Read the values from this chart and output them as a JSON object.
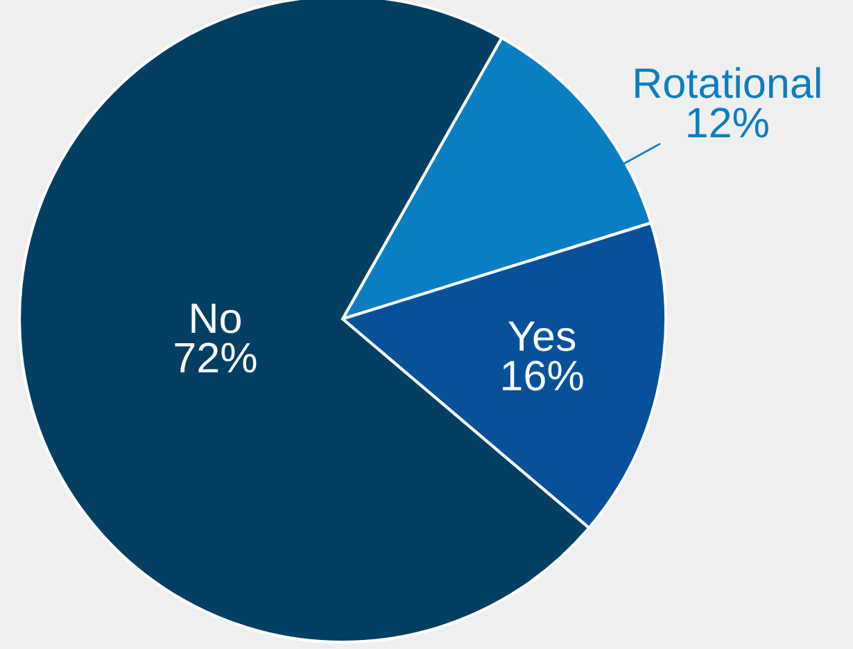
{
  "chart_data": {
    "type": "pie",
    "categories": [
      "Rotational",
      "Yes",
      "No"
    ],
    "values": [
      12,
      16,
      72
    ],
    "value_labels": [
      "12%",
      "16%",
      "72%"
    ],
    "colors": [
      "#0a7ec2",
      "#06519a",
      "#023f62"
    ],
    "legend": false
  }
}
